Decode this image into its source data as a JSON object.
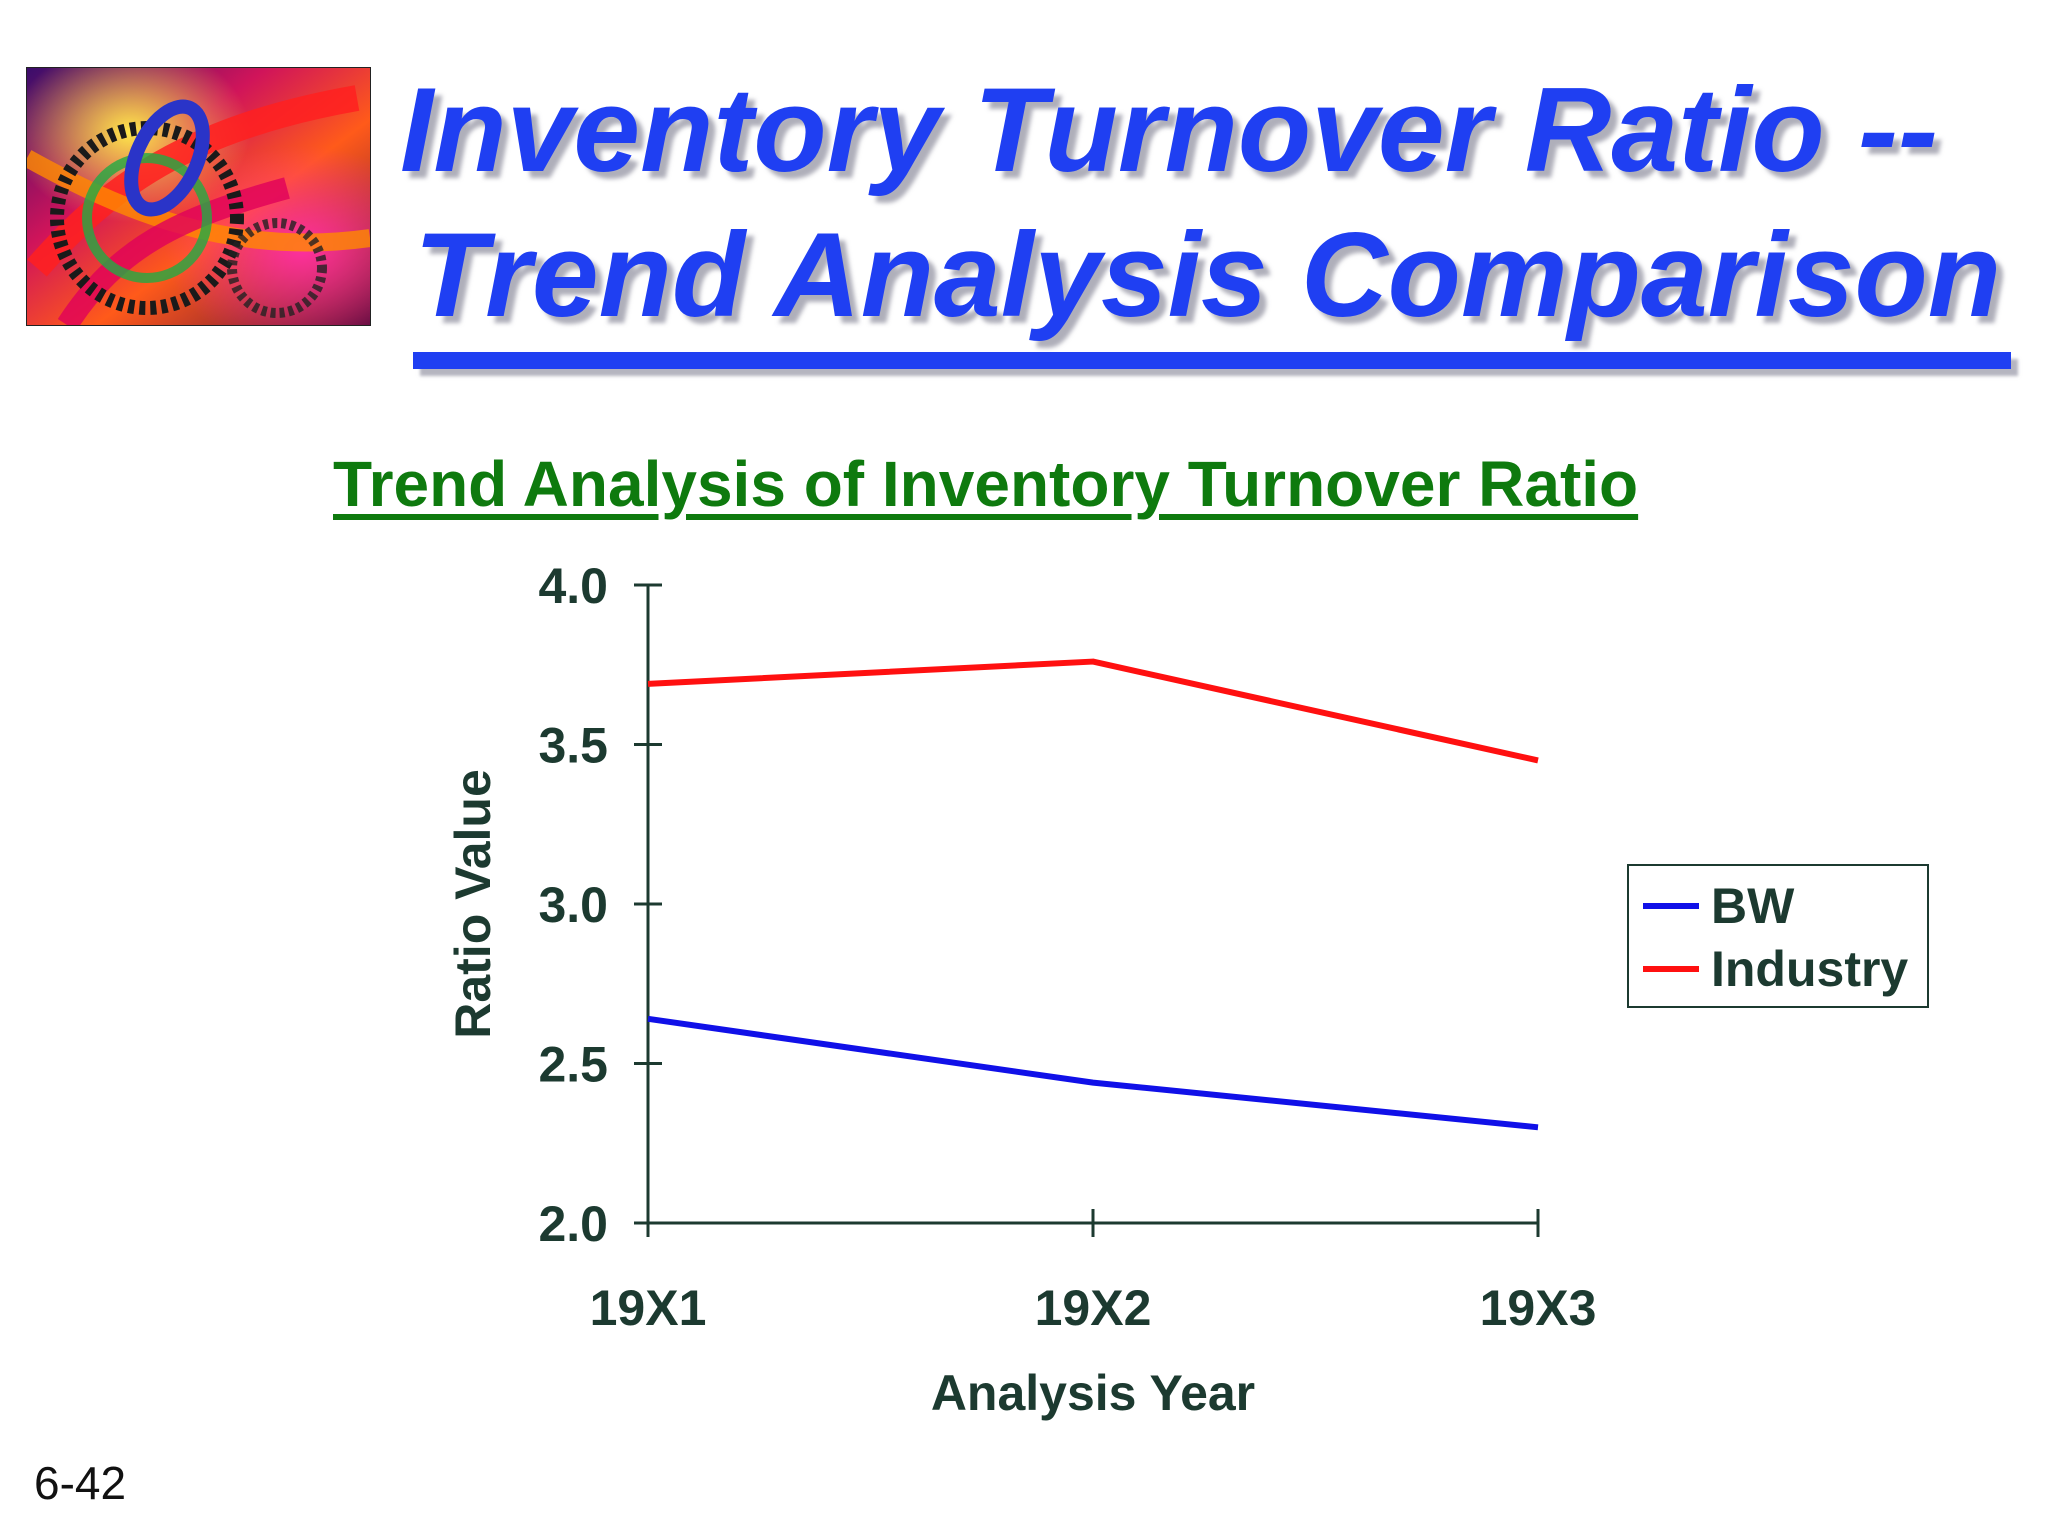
{
  "title": {
    "line1": "Inventory Turnover Ratio --",
    "line2": "Trend Analysis Comparison"
  },
  "logo": {
    "icon": "abstract-gears-image"
  },
  "page_number": "6-42",
  "colors": {
    "title": "#1f3ff2",
    "subtitle": "#0e7a0e",
    "axis": "#1c3a30",
    "bw": "#1010e8",
    "industry": "#ff1010"
  },
  "chart_data": {
    "type": "line",
    "title": "Trend Analysis of Inventory Turnover Ratio",
    "xlabel": "Analysis Year",
    "ylabel": "Ratio Value",
    "categories": [
      "19X1",
      "19X2",
      "19X3"
    ],
    "ylim": [
      2.0,
      4.0
    ],
    "yticks": [
      "2.0",
      "2.5",
      "3.0",
      "3.5",
      "4.0"
    ],
    "grid": false,
    "legend_position": "right",
    "series": [
      {
        "name": "BW",
        "values": [
          2.64,
          2.44,
          2.3
        ],
        "color": "#1010e8"
      },
      {
        "name": "Industry",
        "values": [
          3.69,
          3.76,
          3.45
        ],
        "color": "#ff1010"
      }
    ]
  }
}
